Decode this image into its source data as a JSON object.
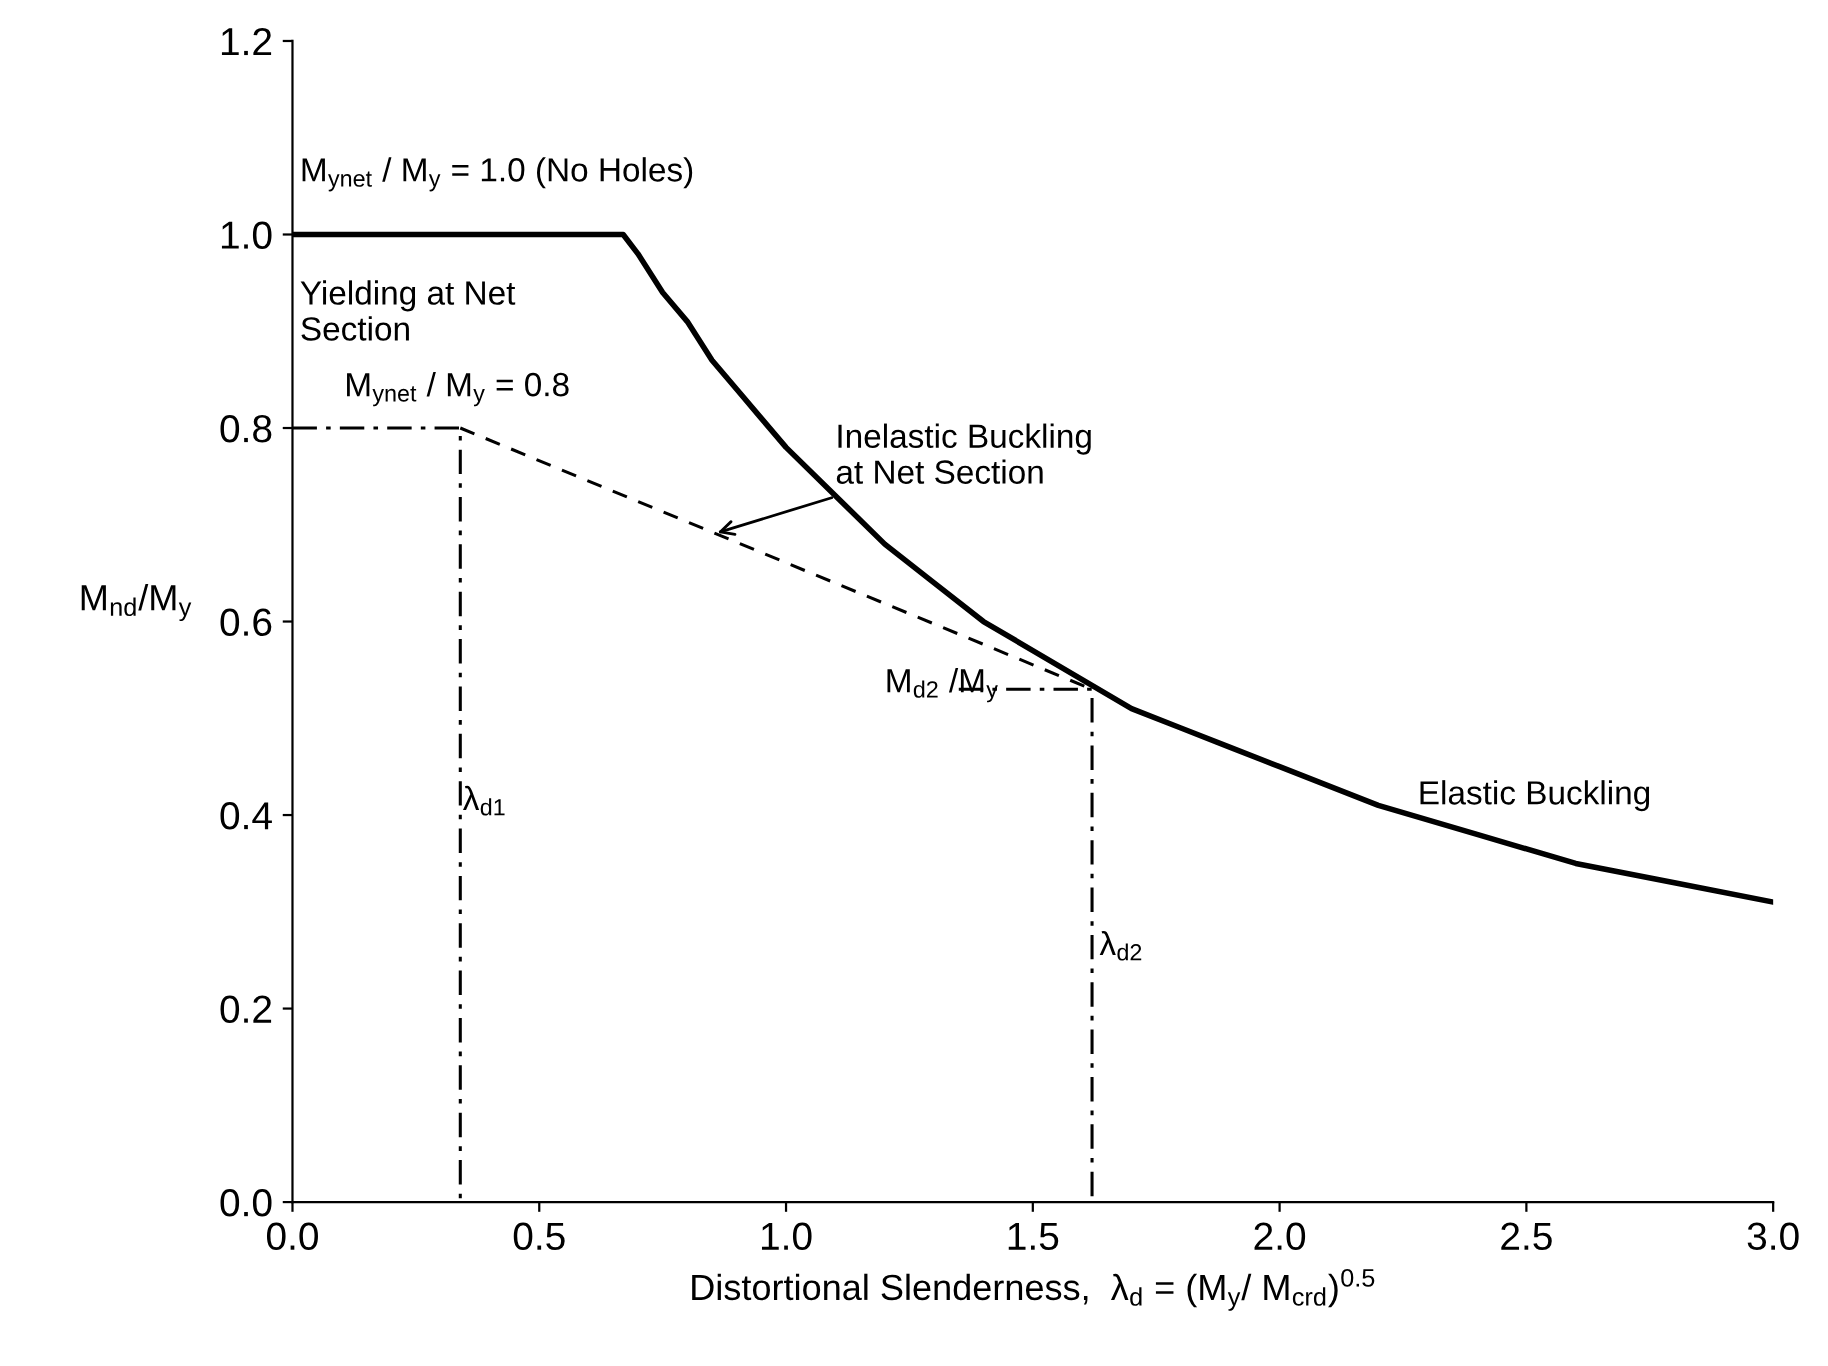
{
  "chart_data": {
    "type": "line",
    "xlabel": "Distortional Slenderness,  λ$_{d}$ = (M$_{y}$/ M$_{crd}$)$^{0.5}$",
    "ylabel": "M$_{nd}$/M$_{y}$",
    "xlim": [
      0,
      3
    ],
    "ylim": [
      0,
      1.2
    ],
    "xticks": [
      {
        "value": 0,
        "label": "0.0"
      },
      0.5,
      {
        "value": 1,
        "label": "1.0"
      },
      1.5,
      {
        "value": 2,
        "label": "2.0"
      },
      2.5,
      {
        "value": 3,
        "label": "3.0"
      }
    ],
    "yticks": [
      {
        "value": 0,
        "label": "0.0"
      },
      0.2,
      0.4,
      0.6,
      0.8,
      {
        "value": 1,
        "label": "1.0"
      },
      1.2
    ],
    "grid": false,
    "legend": false,
    "marker": "none",
    "series": [
      {
        "color": "#000000",
        "line_style": "solid",
        "x": [
          0,
          0.67,
          0.7,
          0.75,
          0.8,
          0.85,
          0.9,
          0.95,
          1.0,
          1.1,
          1.2,
          1.3,
          1.4,
          1.5,
          1.6,
          1.7,
          1.8,
          1.9,
          2.0,
          2.2,
          2.4,
          2.6,
          2.8,
          3.0
        ],
        "values": [
          1.0,
          1.0,
          0.98,
          0.94,
          0.91,
          0.87,
          0.84,
          0.81,
          0.78,
          0.73,
          0.68,
          0.64,
          0.6,
          0.57,
          0.54,
          0.51,
          0.49,
          0.47,
          0.45,
          0.41,
          0.38,
          0.35,
          0.33,
          0.31
        ]
      },
      {
        "color": "#000000",
        "line_style": "dashed",
        "x": [
          0.34,
          1.62
        ],
        "values": [
          0.8,
          0.53
        ]
      },
      {
        "color": "#000000",
        "line_style": "dashdot",
        "x": [
          0,
          0.34,
          0.34
        ],
        "values": [
          0.8,
          0.8,
          0
        ]
      },
      {
        "color": "#000000",
        "line_style": "dashdot",
        "x": [
          1.35,
          1.62,
          1.62
        ],
        "values": [
          0.53,
          0.53,
          0
        ]
      }
    ],
    "annotations": [
      "M$_{ynet}$ / M$_{y}$ = 1.0 (No Holes)",
      "Yielding at Net\nSection",
      "M$_{ynet}$ / M$_{y}$ = 0.8",
      {
        "text": "Inelastic Buckling\nat Net Section",
        "x": 0.85,
        "y": 0.69
      },
      "M$_{d2}$ /M$_{y}$",
      "λ$_{d1}$",
      "λ$_{d2}$",
      "Elastic Buckling"
    ]
  }
}
